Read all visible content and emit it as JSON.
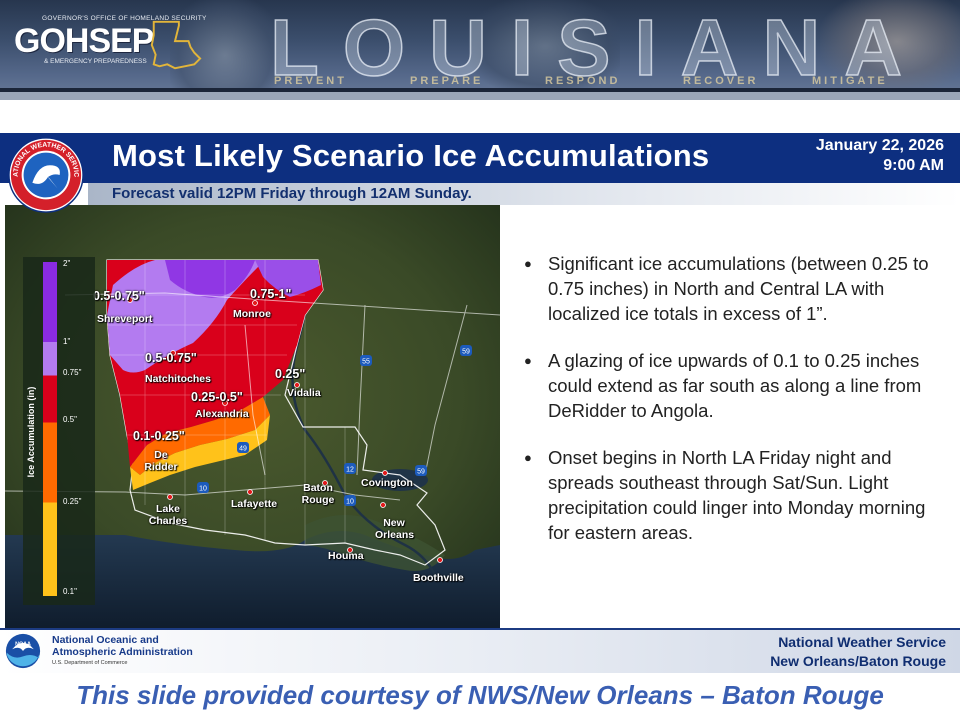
{
  "banner": {
    "agency_line": "GOVERNOR'S OFFICE OF HOMELAND SECURITY",
    "logo_text": "GOHSEP",
    "ep_line": "& EMERGENCY PREPAREDNESS",
    "state_word": "LOUISIANA",
    "mission": [
      "PREVENT",
      "PREPARE",
      "RESPOND",
      "RECOVER",
      "MITIGATE"
    ]
  },
  "slide": {
    "title": "Most Likely Scenario Ice Accumulations",
    "date": "January 22, 2026",
    "time": "9:00 AM",
    "subtitle": "Forecast valid 12PM Friday through 12AM Sunday.",
    "logo_text": "NATIONAL WEATHER SERVICE"
  },
  "map": {
    "legend_title": "Ice Accumulation (in)",
    "legend_ticks": [
      "2\"",
      "1\"",
      "0.75\"",
      "0.5\"",
      "0.25\"",
      "0.1\""
    ],
    "legend_colors": {
      "over_1": "#8a2be2",
      "to_1": "#b37bf0",
      "to_075": "#d9001b",
      "to_05": "#ff6a00",
      "to_025": "#ffc21a"
    },
    "ice_labels": [
      "0.5-0.75\"",
      "0.75-1\"",
      "0.5-0.75\"",
      "0.25\"",
      "0.25-0.5\"",
      "0.1-0.25\""
    ],
    "cities": [
      "Shreveport",
      "Monroe",
      "Natchitoches",
      "Vidalia",
      "Alexandria",
      "De Ridder",
      "Lake Charles",
      "Lafayette",
      "Baton Rouge",
      "Covington",
      "New Orleans",
      "Houma",
      "Boothville"
    ],
    "highways": [
      "49",
      "10",
      "12",
      "10",
      "55",
      "59",
      "59"
    ]
  },
  "bullets": [
    "Significant ice accumulations (between 0.25 to 0.75 inches) in North and Central LA with localized ice totals in excess of 1”.",
    "A glazing of ice upwards of 0.1 to 0.25 inches could extend as far south as along a line from DeRidder to Angola.",
    "Onset begins in North LA Friday night and spreads southeast through Sat/Sun. Light precipitation could linger into Monday morning for eastern areas."
  ],
  "footer": {
    "noaa_line1": "National Oceanic and",
    "noaa_line2": "Atmospheric Administration",
    "noaa_dept": "U.S. Department of Commerce",
    "noaa_logo": "NOAA",
    "nws_line1": "National Weather Service",
    "nws_line2": "New Orleans/Baton Rouge"
  },
  "courtesy": "This slide provided courtesy of NWS/New Orleans – Baton Rouge"
}
